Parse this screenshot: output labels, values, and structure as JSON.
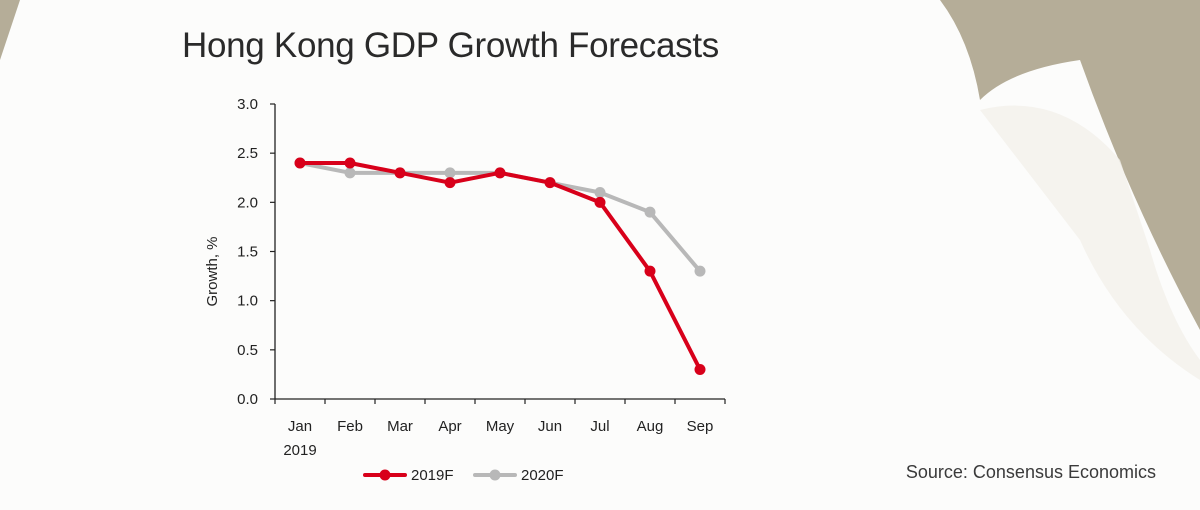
{
  "header": {
    "title": "Hong Kong GDP Growth Forecasts"
  },
  "footer": {
    "source": "Source: Consensus Economics"
  },
  "colors": {
    "series_2019": "#d8001a",
    "series_2020": "#b8b8b8",
    "background": "#b5ad98",
    "paper": "#fcfcfb"
  },
  "chart_data": {
    "type": "line",
    "title": "",
    "xlabel": "",
    "ylabel": "Growth, %",
    "categories": [
      "Jan",
      "Feb",
      "Mar",
      "Apr",
      "May",
      "Jun",
      "Jul",
      "Aug",
      "Sep"
    ],
    "category_sublabels": [
      "2019",
      "",
      "",
      "",
      "",
      "",
      "",
      "",
      ""
    ],
    "ylim": [
      0,
      3.0
    ],
    "yticks": [
      "0.0",
      "0.5",
      "1.0",
      "1.5",
      "2.0",
      "2.5",
      "3.0"
    ],
    "grid": false,
    "legend_position": "bottom",
    "series": [
      {
        "name": "2019F",
        "color": "#d8001a",
        "values": [
          2.4,
          2.4,
          2.3,
          2.2,
          2.3,
          2.2,
          2.0,
          1.3,
          0.3
        ]
      },
      {
        "name": "2020F",
        "color": "#b8b8b8",
        "values": [
          2.4,
          2.3,
          2.3,
          2.3,
          2.3,
          2.2,
          2.1,
          1.9,
          1.3
        ]
      }
    ]
  }
}
